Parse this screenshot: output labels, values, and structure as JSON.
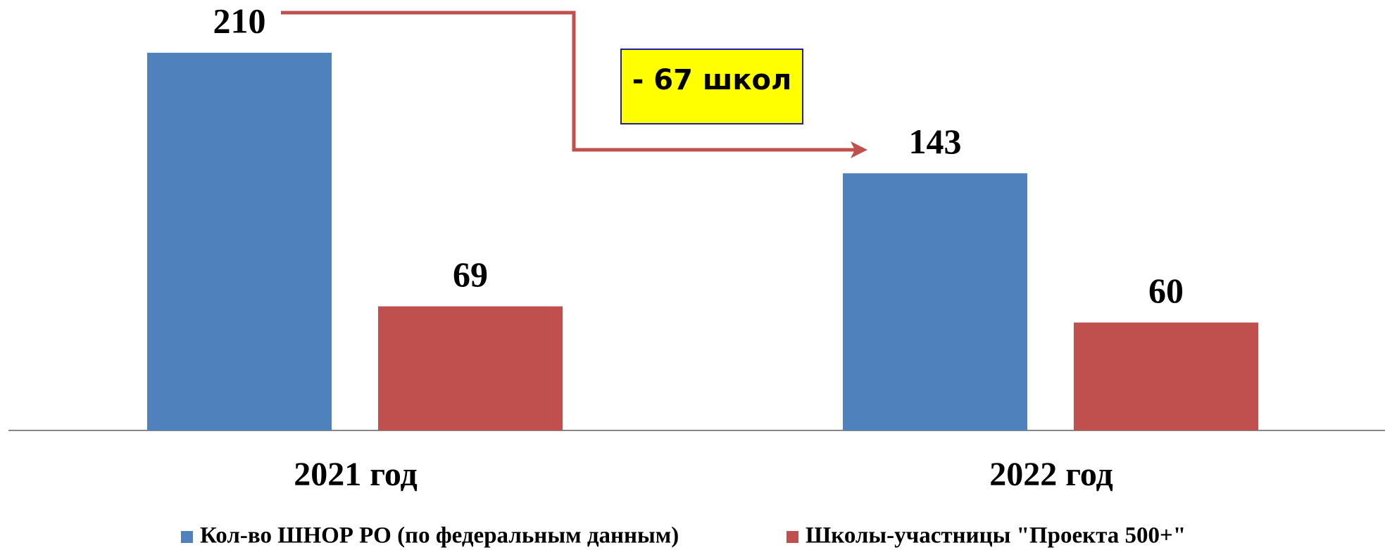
{
  "chart_data": {
    "type": "bar",
    "categories": [
      "2021 год",
      "2022 год"
    ],
    "series": [
      {
        "name": "Кол-во ШНОР РО (по федеральным данным)",
        "color": "#4f81bd",
        "values": [
          210,
          143
        ]
      },
      {
        "name": "Школы-участницы \"Проекта 500+\"",
        "color": "#c0504d",
        "values": [
          69,
          60
        ]
      }
    ],
    "annotation": "- 67 школ"
  }
}
